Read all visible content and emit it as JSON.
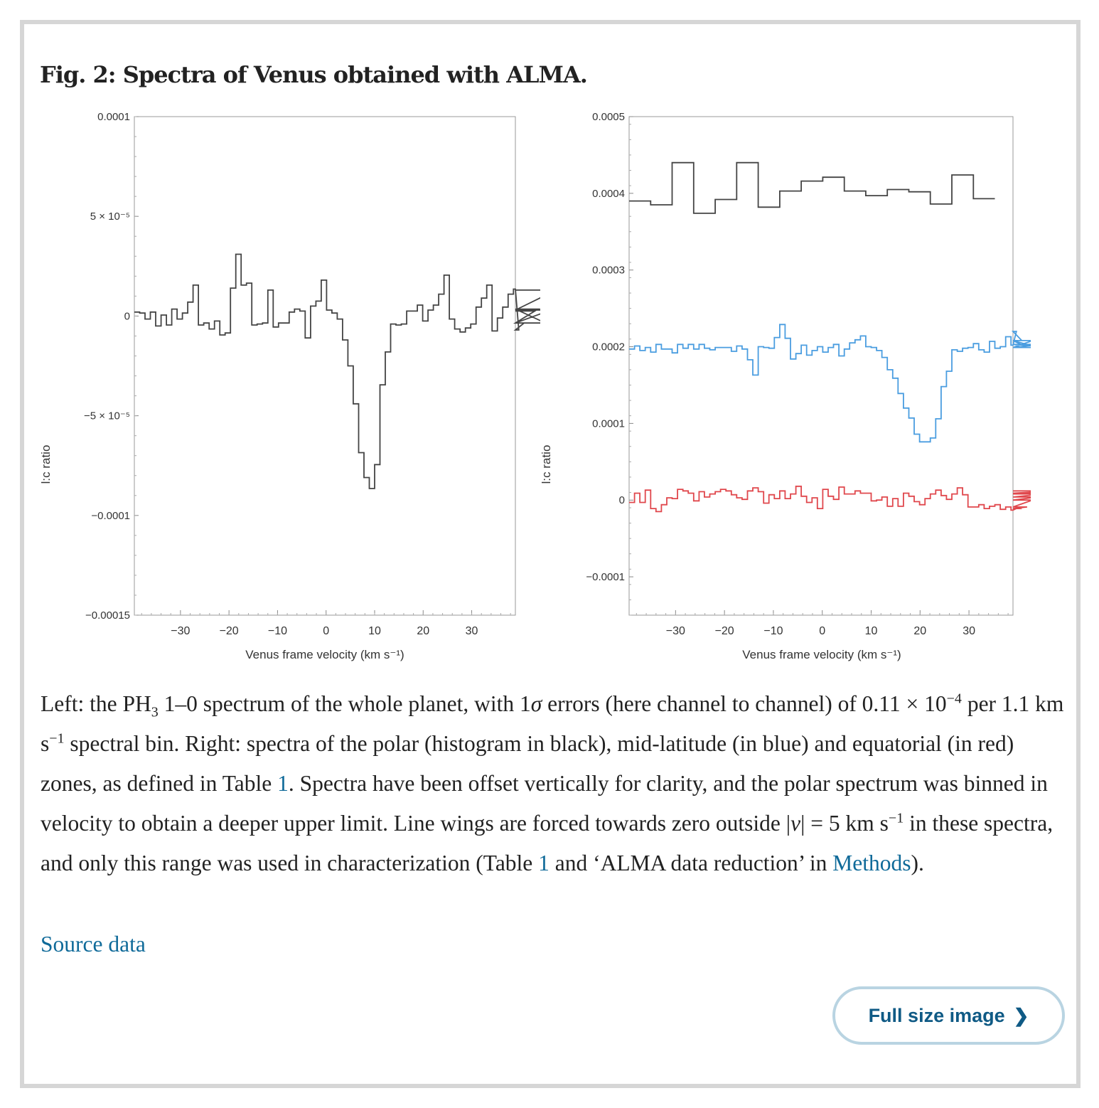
{
  "figure": {
    "title": "Fig. 2: Spectra of Venus obtained with ALMA."
  },
  "caption": {
    "p1": "Left: the PH",
    "p1_sub": "3",
    "p2": " 1–0 spectrum of the whole planet, with 1",
    "p2_sigma": "σ",
    "p3": " errors (here channel to channel) of 0.11 × 10",
    "p3_sup": "−4",
    "p4": " per 1.1 km s",
    "p4_sup": "−1",
    "p5": " spectral bin. Right: spectra of the polar (histogram in black), mid-latitude (in blue) and equatorial (in red) zones, as defined in Table ",
    "link_table1_a": "1",
    "p6": ". Spectra have been offset vertically for clarity, and the polar spectrum was binned in velocity to obtain a deeper upper limit. Line wings are forced towards zero outside |",
    "p6_v": "v",
    "p7": "| = 5 km s",
    "p7_sup": "−1",
    "p8": " in these spectra, and only this range was used in characterization (Table ",
    "link_table1_b": "1",
    "p9": " and ‘ALMA data reduction’ in ",
    "link_methods": "Methods",
    "p10": ")."
  },
  "source_link": "Source data",
  "full_size_button": {
    "label": "Full size image",
    "icon": "chevron-right-icon"
  },
  "colors": {
    "black_series": "#444444",
    "mid_latitude": "#4a9de0",
    "equatorial": "#e0474c",
    "link": "#0f6a99"
  },
  "chart_data": [
    {
      "type": "line",
      "style": "step-histogram",
      "xlabel": "Venus frame velocity (km s⁻¹)",
      "ylabel": "l:c ratio",
      "xlim": [
        -39.5,
        39
      ],
      "ylim": [
        -0.00015,
        0.0001
      ],
      "x_ticks": [
        -30,
        -20,
        -10,
        0,
        10,
        20,
        30
      ],
      "x_tick_labels": [
        "−30",
        "−20",
        "−10",
        "0",
        "10",
        "20",
        "30"
      ],
      "y_ticks": [
        0.0001,
        5e-05,
        0,
        -5e-05,
        -0.0001,
        -0.00015
      ],
      "y_tick_labels": [
        "0.0001",
        "5 × 10⁻⁵",
        "0",
        "−5 × 10⁻⁵",
        "−0.0001",
        "−0.00015"
      ],
      "grid": false,
      "series": [
        {
          "x_start": -39.5,
          "bin_width": 1.1,
          "values": [
            2e-06,
            1.5e-06,
            -1.5e-06,
            2e-06,
            -5e-06,
            5e-07,
            -4.5e-06,
            3.5e-06,
            -1.5e-06,
            1.5e-06,
            7e-06,
            1.55e-05,
            -4.5e-06,
            -3.5e-06,
            -6.5e-06,
            -2.5e-06,
            -9.5e-06,
            -8.5e-06,
            1.4e-05,
            3.1e-05,
            1.55e-05,
            1.65e-05,
            -4.5e-06,
            -4e-06,
            -3.5e-06,
            1.3e-05,
            -5.5e-06,
            -3.5e-06,
            -3.5e-06,
            2e-06,
            3.5e-06,
            2.5e-06,
            -1.1e-05,
            5e-06,
            7.5e-06,
            1.8e-05,
            3e-06,
            1.5e-06,
            -1.5e-06,
            -1.2e-05,
            -2.5e-05,
            -4.4e-05,
            -6.85e-05,
            -8.1e-05,
            -8.65e-05,
            -7.45e-05,
            -3.45e-05,
            -1.8e-05,
            -4e-06,
            -4.5e-06,
            -4e-06,
            2.5e-06,
            2.5e-06,
            5.5e-06,
            -2.5e-06,
            3e-06,
            5.5e-06,
            1.1e-05,
            2.05e-05,
            -1.5e-06,
            -6.5e-06,
            -8e-06,
            -6e-06,
            -4e-06,
            4.5e-06,
            9e-06,
            1.55e-05,
            -7.5e-06,
            -1e-06,
            4.5e-06,
            1.1e-05,
            1.35e-05,
            -7e-06,
            -3.5e-06,
            -3.5e-06,
            2.5e-06,
            3.5e-06,
            -3.5e-06,
            3e-06,
            1.3e-05
          ]
        }
      ]
    },
    {
      "type": "line",
      "style": "step-histogram",
      "xlabel": "Venus frame velocity (km s⁻¹)",
      "ylabel": "l:c ratio",
      "xlim": [
        -39.5,
        39
      ],
      "ylim": [
        -0.00015,
        0.0005
      ],
      "x_ticks": [
        -30,
        -20,
        -10,
        0,
        10,
        20,
        30
      ],
      "x_tick_labels": [
        "−30",
        "−20",
        "−10",
        "0",
        "10",
        "20",
        "30"
      ],
      "y_ticks": [
        0.0005,
        0.0004,
        0.0003,
        0.0002,
        0.0001,
        0,
        -0.0001
      ],
      "y_tick_labels": [
        "0.0005",
        "0.0004",
        "0.0003",
        "0.0002",
        "0.0001",
        "0",
        "−0.0001"
      ],
      "grid": false,
      "series": [
        {
          "color": "#444444",
          "x_start": -39.5,
          "bin_width": 4.4,
          "values": [
            0.00039,
            0.000385,
            0.00044,
            0.000374,
            0.000392,
            0.00044,
            0.000382,
            0.000403,
            0.000416,
            0.000421,
            0.000403,
            0.000397,
            0.000405,
            0.000402,
            0.000386,
            0.000424,
            0.000393
          ]
        },
        {
          "color": "#4a9de0",
          "x_start": -39.5,
          "bin_width": 1.1,
          "values": [
            0.000197,
            0.000201,
            0.000195,
            0.000199,
            0.000193,
            0.000203,
            0.000197,
            0.000197,
            0.000192,
            0.000203,
            0.000198,
            0.000203,
            0.000197,
            0.000203,
            0.000198,
            0.000196,
            0.000199,
            0.000199,
            0.000199,
            0.000194,
            0.000201,
            0.000197,
            0.000183,
            0.000163,
            0.0002,
            0.000199,
            0.000198,
            0.000212,
            0.000229,
            0.000211,
            0.000184,
            0.000191,
            0.000202,
            0.000189,
            0.000195,
            0.0002,
            0.000193,
            0.000199,
            0.000203,
            0.000188,
            0.000197,
            0.000205,
            0.000209,
            0.000214,
            0.0002,
            0.000199,
            0.000195,
            0.000186,
            0.00017,
            0.000159,
            0.000139,
            0.00012,
            0.000107,
            8.6e-05,
            7.6e-05,
            7.6e-05,
            8.1e-05,
            0.000106,
            0.000148,
            0.000168,
            0.000196,
            0.000194,
            0.000198,
            0.000199,
            0.000204,
            0.000196,
            0.000193,
            0.000207,
            0.000198,
            0.0002,
            0.000213,
            0.000202,
            0.00022,
            0.000208,
            0.000199,
            0.000208,
            0.000199,
            0.000203,
            0.000203,
            0.000199
          ]
        },
        {
          "color": "#e0474c",
          "x_start": -39.5,
          "bin_width": 1.1,
          "values": [
            -3e-06,
            9e-06,
            -3e-06,
            1.3e-05,
            -1.1e-05,
            -1.5e-05,
            -6e-06,
            3e-06,
            2e-06,
            1.4e-05,
            1.2e-05,
            9e-06,
            -1e-06,
            1.1e-05,
            4e-06,
            8e-06,
            1.1e-05,
            1.4e-05,
            1.2e-05,
            7e-06,
            3e-06,
            1e-06,
            1.2e-05,
            1.6e-05,
            1.1e-05,
            -4e-06,
            7e-06,
            2e-06,
            1.2e-05,
            2e-06,
            8e-06,
            1.8e-05,
            5e-06,
            -3e-06,
            3e-06,
            -1.1e-05,
            1.4e-05,
            5e-06,
            1e-06,
            1.7e-05,
            8e-06,
            8e-06,
            1.2e-05,
            9e-06,
            9e-06,
            -1e-06,
            0.0,
            4e-06,
            -8e-06,
            2e-06,
            -8e-06,
            9e-06,
            5e-06,
            -2e-06,
            -6e-06,
            2e-06,
            8e-06,
            1.3e-05,
            6e-06,
            1e-06,
            8e-06,
            1.6e-05,
            7e-06,
            -9e-06,
            -9e-06,
            -6e-06,
            -1.1e-05,
            -8e-06,
            -6e-06,
            -1.2e-05,
            -9e-06,
            -1.3e-05,
            -1.1e-05,
            -1.1e-05,
            -9e-06,
            0.0,
            4e-06,
            8e-06,
            9e-06,
            1.2e-05
          ]
        }
      ]
    }
  ]
}
